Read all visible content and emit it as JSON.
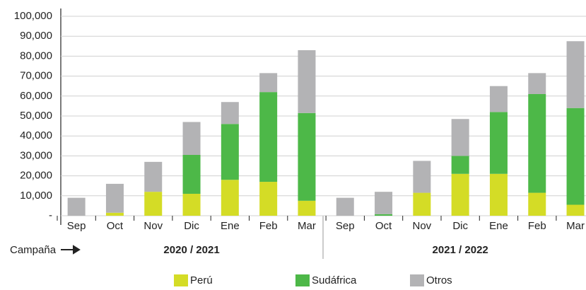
{
  "chart_data": {
    "type": "stacked_bar",
    "categories": [
      "Sep",
      "Oct",
      "Nov",
      "Dic",
      "Ene",
      "Feb",
      "Mar",
      "Sep",
      "Oct",
      "Nov",
      "Dic",
      "Ene",
      "Feb",
      "Mar"
    ],
    "groups": [
      "2020 / 2021",
      "2021 / 2022"
    ],
    "x_label": "Campaña",
    "series": [
      {
        "name": "Perú",
        "color": "#d4dc26",
        "values": [
          0,
          1500,
          12000,
          11000,
          18000,
          17000,
          7500,
          0,
          0,
          11500,
          21000,
          21000,
          11500,
          5500
        ]
      },
      {
        "name": "Sudáfrica",
        "color": "#4db848",
        "values": [
          0,
          0,
          0,
          19500,
          28000,
          45000,
          44000,
          0,
          800,
          0,
          9000,
          31000,
          49500,
          48500
        ]
      },
      {
        "name": "Otros",
        "color": "#b3b3b5",
        "values": [
          9000,
          14500,
          15000,
          16500,
          11000,
          9500,
          31500,
          9000,
          11200,
          16000,
          18500,
          13000,
          10500,
          33500
        ]
      }
    ],
    "ylim": [
      0,
      100000
    ],
    "yticks": [
      {
        "value": 0,
        "label": "-"
      },
      {
        "value": 10000,
        "label": "10,000"
      },
      {
        "value": 20000,
        "label": "20,000"
      },
      {
        "value": 30000,
        "label": "30,000"
      },
      {
        "value": 40000,
        "label": "40,000"
      },
      {
        "value": 50000,
        "label": "50,000"
      },
      {
        "value": 60000,
        "label": "60,000"
      },
      {
        "value": 70000,
        "label": "70,000"
      },
      {
        "value": 80000,
        "label": "80,000"
      },
      {
        "value": 90000,
        "label": "90,000"
      },
      {
        "value": 100000,
        "label": "100,000"
      }
    ],
    "grid": true
  }
}
